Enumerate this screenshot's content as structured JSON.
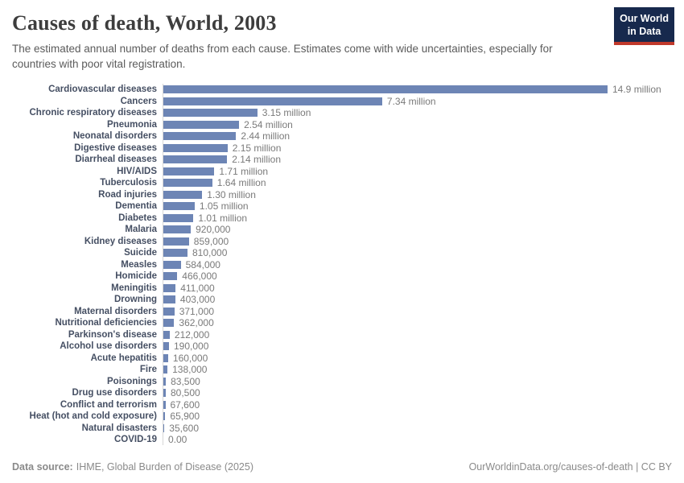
{
  "chart_data": {
    "type": "bar",
    "orientation": "horizontal",
    "title": "Causes of death, World, 2003",
    "subtitle": "The estimated annual number of deaths from each cause. Estimates come with wide uncertainties, especially for countries with poor vital registration.",
    "categories": [
      "Cardiovascular diseases",
      "Cancers",
      "Chronic respiratory diseases",
      "Pneumonia",
      "Neonatal disorders",
      "Digestive diseases",
      "Diarrheal diseases",
      "HIV/AIDS",
      "Tuberculosis",
      "Road injuries",
      "Dementia",
      "Diabetes",
      "Malaria",
      "Kidney diseases",
      "Suicide",
      "Measles",
      "Homicide",
      "Meningitis",
      "Drowning",
      "Maternal disorders",
      "Nutritional deficiencies",
      "Parkinson's disease",
      "Alcohol use disorders",
      "Acute hepatitis",
      "Fire",
      "Poisonings",
      "Drug use disorders",
      "Conflict and terrorism",
      "Heat (hot and cold exposure)",
      "Natural disasters",
      "COVID-19"
    ],
    "values": [
      14900000,
      7340000,
      3150000,
      2540000,
      2440000,
      2150000,
      2140000,
      1710000,
      1640000,
      1300000,
      1050000,
      1010000,
      920000,
      859000,
      810000,
      584000,
      466000,
      411000,
      403000,
      371000,
      362000,
      212000,
      190000,
      160000,
      138000,
      83500,
      80500,
      67600,
      65900,
      35600,
      0
    ],
    "value_labels": [
      "14.9 million",
      "7.34 million",
      "3.15 million",
      "2.54 million",
      "2.44 million",
      "2.15 million",
      "2.14 million",
      "1.71 million",
      "1.64 million",
      "1.30 million",
      "1.05 million",
      "1.01 million",
      "920,000",
      "859,000",
      "810,000",
      "584,000",
      "466,000",
      "411,000",
      "403,000",
      "371,000",
      "362,000",
      "212,000",
      "190,000",
      "160,000",
      "138,000",
      "83,500",
      "80,500",
      "67,600",
      "65,900",
      "35,600",
      "0.00"
    ],
    "xlim": [
      0,
      14900000
    ],
    "grid": false,
    "legend": false,
    "bar_color": "#6d85b5",
    "axis_line_color": "#d6d6d6",
    "category_label_color": "#454f63",
    "value_label_color": "#7a7a7a"
  },
  "logo": {
    "line1": "Our World",
    "line2": "in Data",
    "bg_color": "#17294d",
    "stripe_color": "#c0392b"
  },
  "footer": {
    "data_source_label": "Data source:",
    "data_source_value": "IHME, Global Burden of Disease (2025)",
    "link": "OurWorldinData.org/causes-of-death | CC BY"
  }
}
